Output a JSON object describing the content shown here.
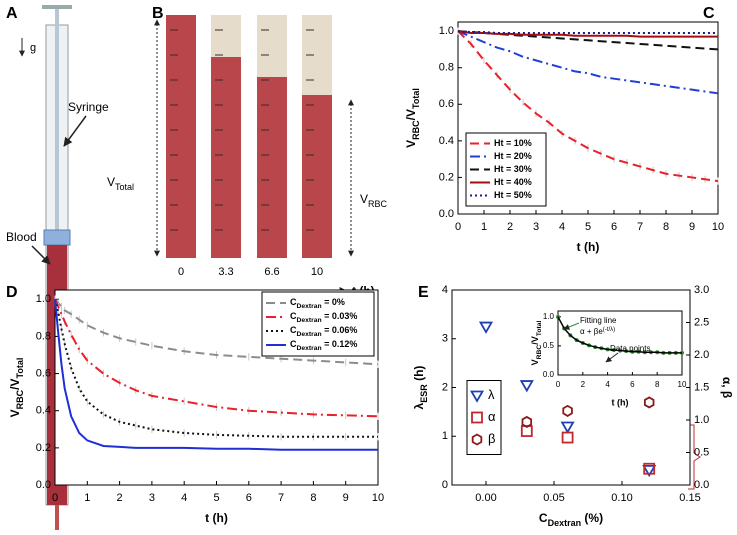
{
  "panel_a": {
    "label": "A",
    "gravity": "g",
    "syringe": "Syringe",
    "blood": "Blood"
  },
  "panel_b": {
    "label": "B",
    "v_total": [
      "V",
      "Total"
    ],
    "v_rbc": [
      "V",
      "RBC"
    ],
    "times": [
      0,
      3.3,
      6.6,
      10
    ],
    "time_axis": "t (h)"
  },
  "chart_data": [
    {
      "type": "line",
      "label": "C",
      "ylabel": [
        "V",
        "RBC",
        "/V",
        "Total"
      ],
      "xlabel": "t (h)",
      "x": [
        0,
        0.5,
        1,
        1.5,
        2,
        2.5,
        3,
        3.5,
        4,
        4.5,
        5,
        5.5,
        6,
        6.5,
        7,
        7.5,
        8,
        8.5,
        9,
        9.5,
        10
      ],
      "xlim": [
        0,
        10
      ],
      "ylim": [
        0,
        1.05
      ],
      "xticks": [
        0,
        1,
        2,
        3,
        4,
        5,
        6,
        7,
        8,
        9,
        10
      ],
      "yticks": [
        {
          "value": 0,
          "label": "0.0"
        },
        0.2,
        0.4,
        0.6,
        0.8,
        {
          "value": 1,
          "label": "1.0"
        }
      ],
      "legend": "lower left",
      "series": [
        {
          "name": "Ht = 10%",
          "color": "#e8212b",
          "dash": "dashed",
          "error": 0.02,
          "values": [
            1,
            0.93,
            0.84,
            0.76,
            0.68,
            0.61,
            0.55,
            0.5,
            0.44,
            0.4,
            0.36,
            0.33,
            0.3,
            0.28,
            0.26,
            0.24,
            0.22,
            0.21,
            0.2,
            0.19,
            0.18
          ]
        },
        {
          "name": "Ht = 20%",
          "color": "#1f3fd6",
          "dash": "dashdot",
          "values": [
            1,
            0.97,
            0.94,
            0.91,
            0.89,
            0.86,
            0.84,
            0.82,
            0.8,
            0.78,
            0.77,
            0.75,
            0.74,
            0.73,
            0.72,
            0.71,
            0.7,
            0.69,
            0.68,
            0.67,
            0.66
          ]
        },
        {
          "name": "Ht = 30%",
          "color": "#111111",
          "dash": "dashed",
          "values": [
            1,
            0.995,
            0.99,
            0.985,
            0.98,
            0.975,
            0.97,
            0.965,
            0.96,
            0.955,
            0.95,
            0.945,
            0.94,
            0.935,
            0.93,
            0.925,
            0.92,
            0.915,
            0.91,
            0.905,
            0.9
          ]
        },
        {
          "name": "Ht = 40%",
          "color": "#a01010",
          "dash": "solid",
          "values": [
            1,
            0.99,
            0.99,
            0.985,
            0.985,
            0.98,
            0.98,
            0.98,
            0.98,
            0.975,
            0.975,
            0.975,
            0.975,
            0.975,
            0.97,
            0.97,
            0.97,
            0.97,
            0.97,
            0.97,
            0.97
          ]
        },
        {
          "name": "Ht = 50%",
          "color": "#1a1a8c",
          "dash": "dotted",
          "values": [
            1,
            0.995,
            0.995,
            0.99,
            0.99,
            0.99,
            0.99,
            0.99,
            0.99,
            0.99,
            0.99,
            0.99,
            0.99,
            0.99,
            0.99,
            0.99,
            0.99,
            0.99,
            0.99,
            0.99,
            0.99
          ]
        }
      ]
    },
    {
      "type": "line",
      "label": "D",
      "ylabel": [
        "V",
        "RBC",
        "/V",
        "Total"
      ],
      "xlabel": "t (h)",
      "x": [
        0,
        0.1,
        0.2,
        0.3,
        0.5,
        0.75,
        1,
        1.5,
        2,
        2.5,
        3,
        4,
        5,
        6,
        7,
        8,
        9,
        10
      ],
      "xlim": [
        0,
        10
      ],
      "ylim": [
        0,
        1.05
      ],
      "xticks": [
        0,
        1,
        2,
        3,
        4,
        5,
        6,
        7,
        8,
        9,
        10
      ],
      "yticks": [
        {
          "value": 0,
          "label": "0.0"
        },
        0.2,
        0.4,
        0.6,
        0.8,
        {
          "value": 1,
          "label": "1.0"
        }
      ],
      "legend": "upper right",
      "series": [
        {
          "name": [
            "C",
            "Dextran",
            " = 0%"
          ],
          "color": "#8c8c8c",
          "dash": "dashed",
          "error": 0.02,
          "values": [
            1,
            0.98,
            0.96,
            0.94,
            0.92,
            0.89,
            0.86,
            0.82,
            0.79,
            0.77,
            0.75,
            0.72,
            0.7,
            0.69,
            0.68,
            0.67,
            0.66,
            0.65
          ]
        },
        {
          "name": [
            "C",
            "Dextran",
            " = 0.03%"
          ],
          "color": "#e8212b",
          "dash": "dashdot",
          "error": 0.02,
          "values": [
            1,
            0.96,
            0.92,
            0.88,
            0.81,
            0.73,
            0.67,
            0.6,
            0.55,
            0.51,
            0.48,
            0.45,
            0.42,
            0.4,
            0.39,
            0.38,
            0.375,
            0.37
          ]
        },
        {
          "name": [
            "C",
            "Dextran",
            " = 0.06%"
          ],
          "color": "#111111",
          "dash": "dotted",
          "error": 0.02,
          "values": [
            1,
            0.93,
            0.84,
            0.76,
            0.63,
            0.52,
            0.45,
            0.38,
            0.34,
            0.32,
            0.3,
            0.28,
            0.27,
            0.265,
            0.26,
            0.26,
            0.26,
            0.26
          ]
        },
        {
          "name": [
            "C",
            "Dextran",
            " = 0.12%"
          ],
          "color": "#1f2fd6",
          "dash": "solid",
          "values": [
            1,
            0.82,
            0.65,
            0.52,
            0.37,
            0.28,
            0.24,
            0.21,
            0.205,
            0.2,
            0.2,
            0.2,
            0.195,
            0.195,
            0.19,
            0.19,
            0.19,
            0.19
          ]
        }
      ]
    },
    {
      "type": "scatter",
      "label": "E",
      "ylabel": [
        "λ",
        "ESR",
        " (h)"
      ],
      "ylabel_color": "#1f2f8c",
      "y2label": "α, β",
      "y2label_color": "#8b1a1a",
      "xlabel": [
        "C",
        "Dextran",
        " (%)"
      ],
      "x": [
        0,
        0.03,
        0.06,
        0.12
      ],
      "xlim": [
        -0.025,
        0.15
      ],
      "ylim": [
        0,
        4
      ],
      "y2lim": [
        0,
        3
      ],
      "xticks": [
        {
          "value": 0,
          "label": "0.00"
        },
        0.05,
        {
          "value": 0.1,
          "label": "0.10"
        },
        0.15
      ],
      "yticks": [
        0,
        1,
        2,
        3,
        4
      ],
      "y2ticks": [
        {
          "value": 0,
          "label": "0.0"
        },
        0.5,
        {
          "value": 1,
          "label": "1.0"
        },
        1.5,
        {
          "value": 2,
          "label": "2.0"
        },
        2.5,
        {
          "value": 3,
          "label": "3.0"
        }
      ],
      "legend": "center left",
      "series": [
        {
          "name": "λ",
          "color": "#1f3fb5",
          "marker": "triangle-down",
          "values": [
            3.25,
            2.05,
            1.2,
            0.31
          ]
        },
        {
          "name": "α",
          "color": "#c0282d",
          "marker": "square",
          "axis": "y2",
          "values": [
            1.09,
            0.83,
            0.73,
            0.25
          ]
        },
        {
          "name": "β",
          "color": "#8b1a1a",
          "marker": "hexagon",
          "axis": "y2",
          "values": [
            0.77,
            0.97,
            1.14,
            1.27
          ]
        }
      ]
    },
    {
      "type": "line",
      "ylabel": [
        "V",
        "RBC",
        "/V",
        "Total"
      ],
      "xlabel": "t (h)",
      "x": [
        0,
        0.5,
        1,
        1.5,
        2,
        2.5,
        3,
        3.5,
        4,
        4.5,
        5,
        5.5,
        6,
        6.5,
        7,
        7.5,
        8,
        8.5,
        9,
        9.5,
        10
      ],
      "xlim": [
        0,
        10
      ],
      "ylim": [
        0,
        1.1
      ],
      "xticks": [
        0,
        2,
        4,
        6,
        8,
        10
      ],
      "yticks": [
        {
          "value": 0,
          "label": "0.0"
        },
        0.5,
        {
          "value": 1,
          "label": "1.0"
        }
      ],
      "annotations": [
        "Fitting line",
        "Data points"
      ],
      "formula": [
        "α + βe",
        "(-t/λ)"
      ],
      "series": [
        {
          "color": "#2e8b2e",
          "marker": "circle",
          "values": [
            1,
            0.8,
            0.68,
            0.6,
            0.55,
            0.51,
            0.48,
            0.46,
            0.44,
            0.43,
            0.42,
            0.41,
            0.4,
            0.4,
            0.39,
            0.39,
            0.39,
            0.38,
            0.38,
            0.38,
            0.38
          ]
        },
        {
          "color": "#000000",
          "dash": "solid",
          "values": [
            1,
            0.8,
            0.68,
            0.6,
            0.55,
            0.51,
            0.48,
            0.46,
            0.44,
            0.43,
            0.42,
            0.41,
            0.4,
            0.4,
            0.39,
            0.39,
            0.39,
            0.38,
            0.38,
            0.38,
            0.38
          ]
        }
      ]
    }
  ]
}
